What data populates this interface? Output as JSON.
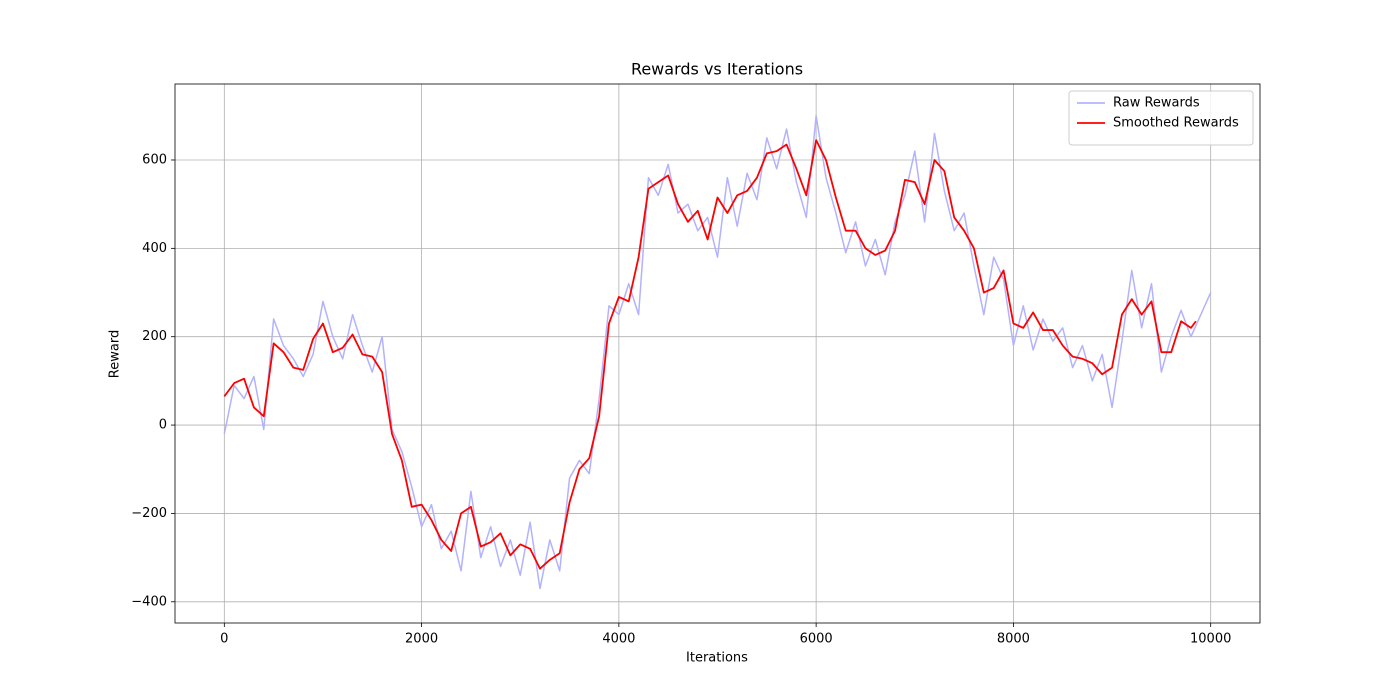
{
  "chart_data": {
    "type": "line",
    "title": "Rewards vs Iterations",
    "x_label": "Iterations",
    "y_label": "Reward",
    "xlim": [
      -500,
      10500
    ],
    "ylim": [
      -448,
      772
    ],
    "xticks": [
      0,
      2000,
      4000,
      6000,
      8000,
      10000
    ],
    "yticks": [
      {
        "value": -400,
        "label": "−400"
      },
      {
        "value": -200,
        "label": "−200"
      },
      0,
      200,
      400,
      600
    ],
    "grid": true,
    "legend": "upper right",
    "series": [
      {
        "name": "Raw Rewards",
        "color": "#b2b2ff",
        "x": [
          0,
          100,
          200,
          300,
          400,
          500,
          600,
          700,
          800,
          900,
          1000,
          1100,
          1200,
          1300,
          1400,
          1500,
          1600,
          1700,
          1800,
          1900,
          2000,
          2100,
          2200,
          2300,
          2400,
          2500,
          2600,
          2700,
          2800,
          2900,
          3000,
          3100,
          3200,
          3300,
          3400,
          3500,
          3600,
          3700,
          3800,
          3900,
          4000,
          4100,
          4200,
          4300,
          4400,
          4500,
          4600,
          4700,
          4800,
          4900,
          5000,
          5100,
          5200,
          5300,
          5400,
          5500,
          5600,
          5700,
          5800,
          5900,
          6000,
          6100,
          6200,
          6300,
          6400,
          6500,
          6600,
          6700,
          6800,
          6900,
          7000,
          7100,
          7200,
          7300,
          7400,
          7500,
          7600,
          7700,
          7800,
          7900,
          8000,
          8100,
          8200,
          8300,
          8400,
          8500,
          8600,
          8700,
          8800,
          8900,
          9000,
          9100,
          9200,
          9300,
          9400,
          9500,
          9600,
          9700,
          9800,
          9900,
          10000
        ],
        "values": [
          -20,
          90,
          60,
          110,
          -10,
          240,
          180,
          150,
          110,
          160,
          280,
          200,
          150,
          250,
          180,
          120,
          200,
          -10,
          -60,
          -140,
          -230,
          -180,
          -280,
          -240,
          -330,
          -150,
          -300,
          -230,
          -320,
          -260,
          -340,
          -220,
          -370,
          -260,
          -330,
          -120,
          -80,
          -110,
          60,
          270,
          250,
          320,
          250,
          560,
          520,
          590,
          480,
          500,
          440,
          470,
          380,
          560,
          450,
          570,
          510,
          650,
          580,
          670,
          550,
          470,
          700,
          560,
          480,
          390,
          460,
          360,
          420,
          340,
          460,
          520,
          620,
          460,
          660,
          530,
          440,
          480,
          360,
          250,
          380,
          330,
          180,
          270,
          170,
          240,
          190,
          220,
          130,
          180,
          100,
          160,
          40,
          190,
          350,
          220,
          320,
          120,
          200,
          260,
          200,
          250,
          300
        ]
      },
      {
        "name": "Smoothed Rewards",
        "color": "#ff0000",
        "x": [
          0,
          100,
          200,
          300,
          400,
          500,
          600,
          700,
          800,
          900,
          1000,
          1100,
          1200,
          1300,
          1400,
          1500,
          1600,
          1700,
          1800,
          1900,
          2000,
          2100,
          2200,
          2300,
          2400,
          2500,
          2600,
          2700,
          2800,
          2900,
          3000,
          3100,
          3200,
          3300,
          3400,
          3500,
          3600,
          3700,
          3800,
          3900,
          4000,
          4100,
          4200,
          4300,
          4400,
          4500,
          4600,
          4700,
          4800,
          4900,
          5000,
          5100,
          5200,
          5300,
          5400,
          5500,
          5600,
          5700,
          5800,
          5900,
          6000,
          6100,
          6200,
          6300,
          6400,
          6500,
          6600,
          6700,
          6800,
          6900,
          7000,
          7100,
          7200,
          7300,
          7400,
          7500,
          7600,
          7700,
          7800,
          7900,
          8000,
          8100,
          8200,
          8300,
          8400,
          8500,
          8600,
          8700,
          8800,
          8900,
          9000,
          9100,
          9200,
          9300,
          9400,
          9500,
          9600,
          9700,
          9800,
          9850
        ],
        "values": [
          65,
          95,
          105,
          40,
          20,
          185,
          165,
          130,
          125,
          195,
          230,
          165,
          175,
          205,
          160,
          155,
          120,
          -20,
          -80,
          -185,
          -180,
          -215,
          -260,
          -285,
          -200,
          -185,
          -275,
          -265,
          -245,
          -295,
          -270,
          -280,
          -325,
          -305,
          -290,
          -175,
          -100,
          -75,
          20,
          230,
          290,
          280,
          380,
          535,
          550,
          565,
          500,
          460,
          485,
          420,
          515,
          480,
          520,
          530,
          560,
          615,
          620,
          635,
          580,
          520,
          645,
          600,
          515,
          440,
          440,
          400,
          385,
          395,
          440,
          555,
          550,
          500,
          600,
          575,
          470,
          440,
          400,
          300,
          310,
          350,
          230,
          220,
          255,
          215,
          215,
          180,
          155,
          150,
          140,
          115,
          130,
          250,
          285,
          250,
          280,
          165,
          165,
          235,
          220,
          235
        ]
      }
    ]
  }
}
